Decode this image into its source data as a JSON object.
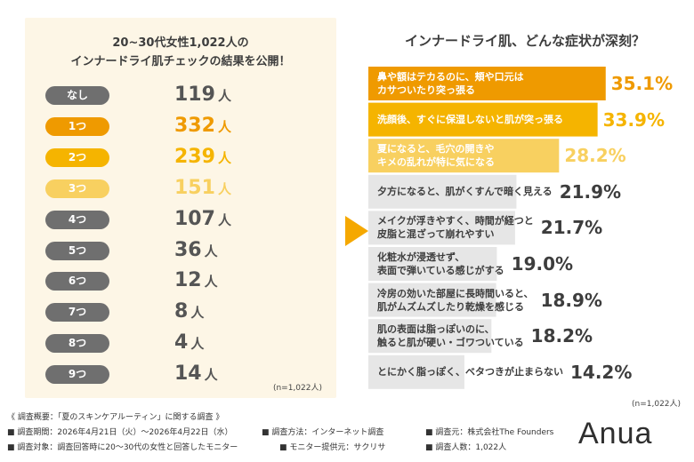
{
  "left": {
    "title_line1": "20~30代女性1,022人の",
    "title_line2": "インナードライ肌チェックの結果を公開！",
    "unit": "人",
    "n": "(n=1,022人)",
    "rows": [
      {
        "label": "なし",
        "count": 119,
        "color": "#6f6f6f"
      },
      {
        "label": "1つ",
        "count": 332,
        "color": "#ef9a00"
      },
      {
        "label": "2つ",
        "count": 239,
        "color": "#f5b400"
      },
      {
        "label": "3つ",
        "count": 151,
        "color": "#f8d060"
      },
      {
        "label": "4つ",
        "count": 107,
        "color": "#6f6f6f"
      },
      {
        "label": "5つ",
        "count": 36,
        "color": "#6f6f6f"
      },
      {
        "label": "6つ",
        "count": 12,
        "color": "#6f6f6f"
      },
      {
        "label": "7つ",
        "count": 8,
        "color": "#6f6f6f"
      },
      {
        "label": "8つ",
        "count": 4,
        "color": "#6f6f6f"
      },
      {
        "label": "9つ",
        "count": 14,
        "color": "#6f6f6f"
      }
    ]
  },
  "right": {
    "title": "インナードライ肌、どんな症状が深刻？",
    "n": "(n=1,022人)"
  },
  "chart_data": {
    "type": "bar",
    "categories": [
      "鼻や額はテカるのに、頬や口元はカサついたり突っ張る",
      "洗顔後、すぐに保湿しないと肌が突っ張る",
      "夏になると、毛穴の開きやキメの乱れが特に気になる",
      "夕方になると、肌がくすんで暗く見える",
      "メイクが浮きやすく、時間が経つと皮脂と混ざって崩れやすい",
      "化粧水が浸透せず、表面で弾いている感じがする",
      "冷房の効いた部屋に長時間いると、肌がムズムズしたり乾燥を感じる",
      "肌の表面は脂っぽいのに、触ると肌が硬い・ゴワついている",
      "とにかく脂っぽく、ベタつきが止まらない"
    ],
    "label_lines": [
      [
        "鼻や額はテカるのに、頬や口元は",
        "カサついたり突っ張る"
      ],
      [
        "洗顔後、すぐに保湿しないと肌が突っ張る"
      ],
      [
        "夏になると、毛穴の開きや",
        "キメの乱れが特に気になる"
      ],
      [
        "夕方になると、肌がくすんで暗く見える"
      ],
      [
        "メイクが浮きやすく、時間が経つと",
        "皮脂と混ざって崩れやすい"
      ],
      [
        "化粧水が浸透せず、",
        "表面で弾いている感じがする"
      ],
      [
        "冷房の効いた部屋に長時間いると、",
        "肌がムズムズしたり乾燥を感じる"
      ],
      [
        "肌の表面は脂っぽいのに、",
        "触ると肌が硬い・ゴワついている"
      ],
      [
        "とにかく脂っぽく、ベタつきが止まらない"
      ]
    ],
    "values": [
      35.1,
      33.9,
      28.2,
      21.9,
      21.7,
      19.0,
      18.9,
      18.2,
      14.2
    ],
    "value_labels": [
      "35.1%",
      "33.9%",
      "28.2%",
      "21.9%",
      "21.7%",
      "19.0%",
      "18.9%",
      "18.2%",
      "14.2%"
    ],
    "bar_colors": [
      "#ef9a00",
      "#f5b400",
      "#f8d060",
      "#e6e6e6",
      "#e6e6e6",
      "#e6e6e6",
      "#e6e6e6",
      "#e6e6e6",
      "#e6e6e6"
    ],
    "text_colors": [
      "#ffffff",
      "#ffffff",
      "#ffffff",
      "#3d3d3d",
      "#3d3d3d",
      "#3d3d3d",
      "#3d3d3d",
      "#3d3d3d",
      "#3d3d3d"
    ],
    "pct_colors": [
      "#ef9a00",
      "#f5b400",
      "#f8d060",
      "#3d3d3d",
      "#3d3d3d",
      "#3d3d3d",
      "#3d3d3d",
      "#3d3d3d",
      "#3d3d3d"
    ],
    "xlim": [
      0,
      40
    ]
  },
  "footer": {
    "summary": "《 調査概要：「夏のスキンケアルーティン」に関する調査 》",
    "period": "■ 調査期間：2026年4月21日（火）〜2026年4月22日（水）",
    "method": "■ 調査方法：インターネット調査",
    "source": "■ 調査元：株式会社The Founders",
    "target": "■ 調査対象：調査回答時に20〜30代の女性と回答したモニター",
    "provider": "■ モニター提供元：サクリサ",
    "count": "■ 調査人数：1,022人"
  },
  "brand": "Anua"
}
